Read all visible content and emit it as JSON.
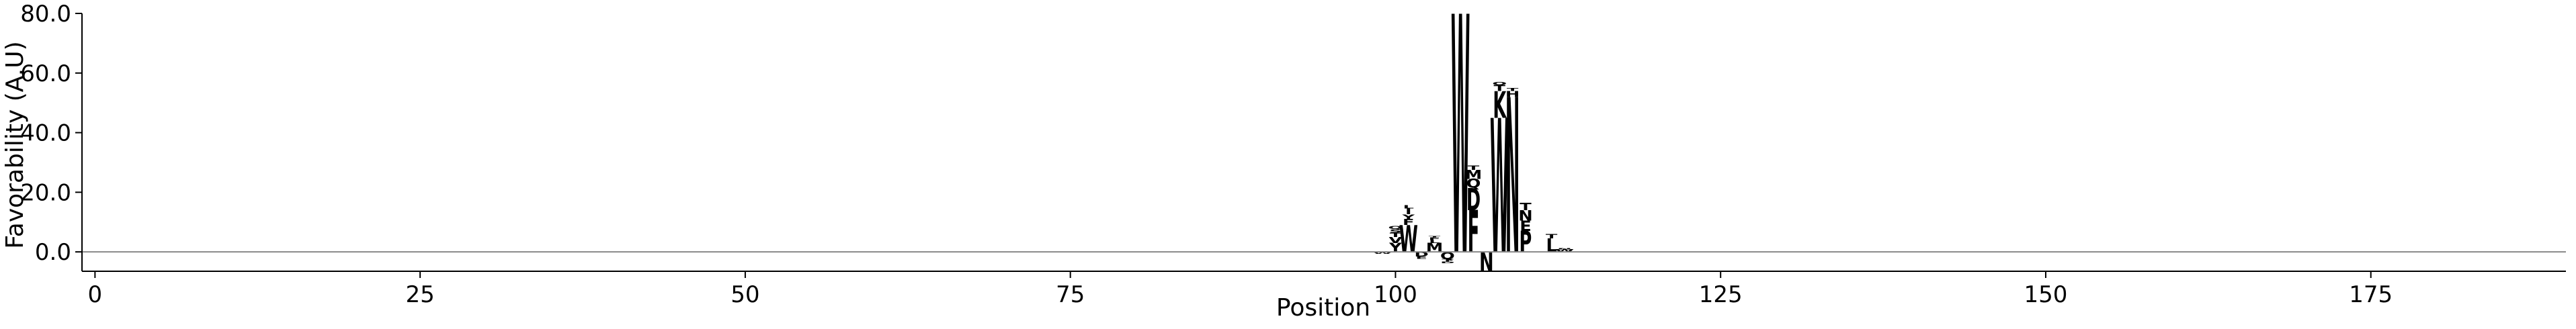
{
  "chart_data": {
    "type": "sequence-logo",
    "title": "",
    "xlabel": "Position",
    "ylabel": "Favorability (A.U)",
    "xlim": [
      -1,
      190
    ],
    "ylim": [
      -6.5,
      80
    ],
    "x_ticks": [
      {
        "value": 0,
        "label": "0"
      },
      {
        "value": 25,
        "label": "25"
      },
      {
        "value": 50,
        "label": "50"
      },
      {
        "value": 75,
        "label": "75"
      },
      {
        "value": 100,
        "label": "100"
      },
      {
        "value": 125,
        "label": "125"
      },
      {
        "value": 150,
        "label": "150"
      },
      {
        "value": 175,
        "label": "175"
      }
    ],
    "y_ticks": [
      {
        "value": 0,
        "label": "0.0"
      },
      {
        "value": 20,
        "label": "20.0"
      },
      {
        "value": 40,
        "label": "40.0"
      },
      {
        "value": 60,
        "label": "60.0"
      },
      {
        "value": 80,
        "label": "80.0"
      }
    ],
    "baseline": 0,
    "grid": false,
    "legend": "none",
    "colors": {
      "axis": "#000000",
      "baseline": "#888888",
      "W": "#8B3A0F",
      "Y": "#B5651D",
      "F": "#8B4513",
      "I": "#1a1a1a",
      "M": "#111111",
      "L": "#111111",
      "V": "#222222",
      "N": "#6A1B9A",
      "Q": "#8E24AA",
      "H": "#7B1FA2",
      "D": "#1976D2",
      "E": "#1565C0",
      "K": "#E91E63",
      "R": "#C2185B",
      "P": "#FF7043",
      "S": "#EC407A",
      "T": "#F06292",
      "G": "#9E9E9E",
      "A": "#5D4037",
      "C": "#FFB300"
    },
    "positions": [
      {
        "pos": 99,
        "stack": [
          {
            "letter": "W",
            "value": -0.6
          }
        ]
      },
      {
        "pos": 100,
        "stack": [
          {
            "letter": "Y",
            "value": 3.0
          },
          {
            "letter": "V",
            "value": 2.0
          },
          {
            "letter": "T",
            "value": 1.5
          },
          {
            "letter": "S",
            "value": 1.2
          },
          {
            "letter": "Q",
            "value": 1.0
          }
        ]
      },
      {
        "pos": 101,
        "stack": [
          {
            "letter": "W",
            "value": 9.0
          },
          {
            "letter": "F",
            "value": 2.0
          },
          {
            "letter": "Y",
            "value": 1.6
          },
          {
            "letter": "I",
            "value": 2.0
          },
          {
            "letter": "L",
            "value": 1.2
          }
        ]
      },
      {
        "pos": 102,
        "stack": [
          {
            "letter": "D",
            "value": -1.6
          },
          {
            "letter": "E",
            "value": -0.7
          }
        ]
      },
      {
        "pos": 103,
        "stack": [
          {
            "letter": "M",
            "value": 3.0
          },
          {
            "letter": "L",
            "value": 1.0
          },
          {
            "letter": "F",
            "value": 0.8
          },
          {
            "letter": "T",
            "value": 0.6
          }
        ]
      },
      {
        "pos": 104,
        "stack": [
          {
            "letter": "Q",
            "value": -2.4
          },
          {
            "letter": "T",
            "value": -0.8
          },
          {
            "letter": "D",
            "value": -0.6
          }
        ]
      },
      {
        "pos": 105,
        "stack": [
          {
            "letter": "W",
            "value": 80.0
          }
        ]
      },
      {
        "pos": 106,
        "stack": [
          {
            "letter": "F",
            "value": 14.0
          },
          {
            "letter": "D",
            "value": 7.5
          },
          {
            "letter": "Q",
            "value": 3.0
          },
          {
            "letter": "M",
            "value": 3.0
          },
          {
            "letter": "T",
            "value": 1.5
          }
        ]
      },
      {
        "pos": 107,
        "stack": [
          {
            "letter": "N",
            "value": -6.5
          }
        ]
      },
      {
        "pos": 108,
        "stack": [
          {
            "letter": "W",
            "value": 45.0
          },
          {
            "letter": "K",
            "value": 9.0
          },
          {
            "letter": "T",
            "value": 2.0
          },
          {
            "letter": "Q",
            "value": 1.0
          }
        ]
      },
      {
        "pos": 109,
        "stack": [
          {
            "letter": "N",
            "value": 52.0
          },
          {
            "letter": "H",
            "value": 2.0
          },
          {
            "letter": "T",
            "value": 1.0
          }
        ]
      },
      {
        "pos": 110,
        "stack": [
          {
            "letter": "P",
            "value": 7.0
          },
          {
            "letter": "E",
            "value": 3.5
          },
          {
            "letter": "N",
            "value": 3.5
          },
          {
            "letter": "T",
            "value": 2.5
          }
        ]
      },
      {
        "pos": 112,
        "stack": [
          {
            "letter": "L",
            "value": 4.5
          },
          {
            "letter": "T",
            "value": 1.5
          }
        ]
      },
      {
        "pos": 113,
        "stack": [
          {
            "letter": "W",
            "value": 0.8
          },
          {
            "letter": "N",
            "value": 0.4
          }
        ]
      }
    ]
  }
}
